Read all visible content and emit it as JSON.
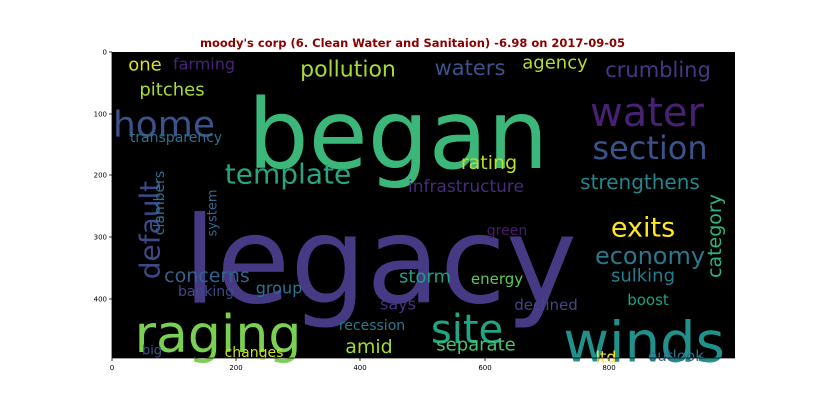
{
  "title": "moody's corp (6. Clean Water and Sanitaion) -6.98 on 2017-09-05",
  "axes": {
    "x_ticks": [
      "0",
      "200",
      "400",
      "600",
      "800"
    ],
    "y_ticks": [
      "0",
      "100",
      "200",
      "300",
      "400"
    ],
    "background": "#000000"
  },
  "words": [
    {
      "text": "began",
      "color": "#3bb77a"
    },
    {
      "text": "legacy",
      "color": "#463a84"
    },
    {
      "text": "raging",
      "color": "#7ad151"
    },
    {
      "text": "winds",
      "color": "#21918c"
    },
    {
      "text": "water",
      "color": "#482173"
    },
    {
      "text": "section",
      "color": "#3b528b"
    },
    {
      "text": "template",
      "color": "#27a480"
    },
    {
      "text": "home",
      "color": "#3b528b"
    },
    {
      "text": "site",
      "color": "#21a685"
    },
    {
      "text": "default",
      "color": "#3e4989"
    },
    {
      "text": "economy",
      "color": "#2a788e"
    },
    {
      "text": "exits",
      "color": "#fde725"
    },
    {
      "text": "pollution",
      "color": "#a5db36"
    },
    {
      "text": "strengthens",
      "color": "#25858e"
    },
    {
      "text": "crumbling",
      "color": "#443983"
    },
    {
      "text": "waters",
      "color": "#3b528b"
    },
    {
      "text": "agency",
      "color": "#b5de2b"
    },
    {
      "text": "pitches",
      "color": "#a8db34"
    },
    {
      "text": "one",
      "color": "#d8e219"
    },
    {
      "text": "farming",
      "color": "#482475"
    },
    {
      "text": "transparency",
      "color": "#2c728e"
    },
    {
      "text": "rating",
      "color": "#b8de29"
    },
    {
      "text": "infrastructure",
      "color": "#472c7a"
    },
    {
      "text": "category",
      "color": "#2fb47c"
    },
    {
      "text": "concerns",
      "color": "#33638d"
    },
    {
      "text": "clambers",
      "color": "#2c728e"
    },
    {
      "text": "system",
      "color": "#31688e"
    },
    {
      "text": "storm",
      "color": "#1f9f88"
    },
    {
      "text": "energy",
      "color": "#5ec962"
    },
    {
      "text": "sulking",
      "color": "#287c8e"
    },
    {
      "text": "green",
      "color": "#481b6d"
    },
    {
      "text": "group",
      "color": "#2d718e"
    },
    {
      "text": "banking",
      "color": "#3e4989"
    },
    {
      "text": "says",
      "color": "#46337f"
    },
    {
      "text": "declined",
      "color": "#3f4788"
    },
    {
      "text": "boost",
      "color": "#1fa187"
    },
    {
      "text": "recession",
      "color": "#2a788e"
    },
    {
      "text": "amid",
      "color": "#a2da37"
    },
    {
      "text": "separate",
      "color": "#4ac16d"
    },
    {
      "text": "big",
      "color": "#3b528b"
    },
    {
      "text": "changes",
      "color": "#cde11d"
    },
    {
      "text": "ltd",
      "color": "#fde725"
    },
    {
      "text": "outlook",
      "color": "#2d708e"
    }
  ]
}
